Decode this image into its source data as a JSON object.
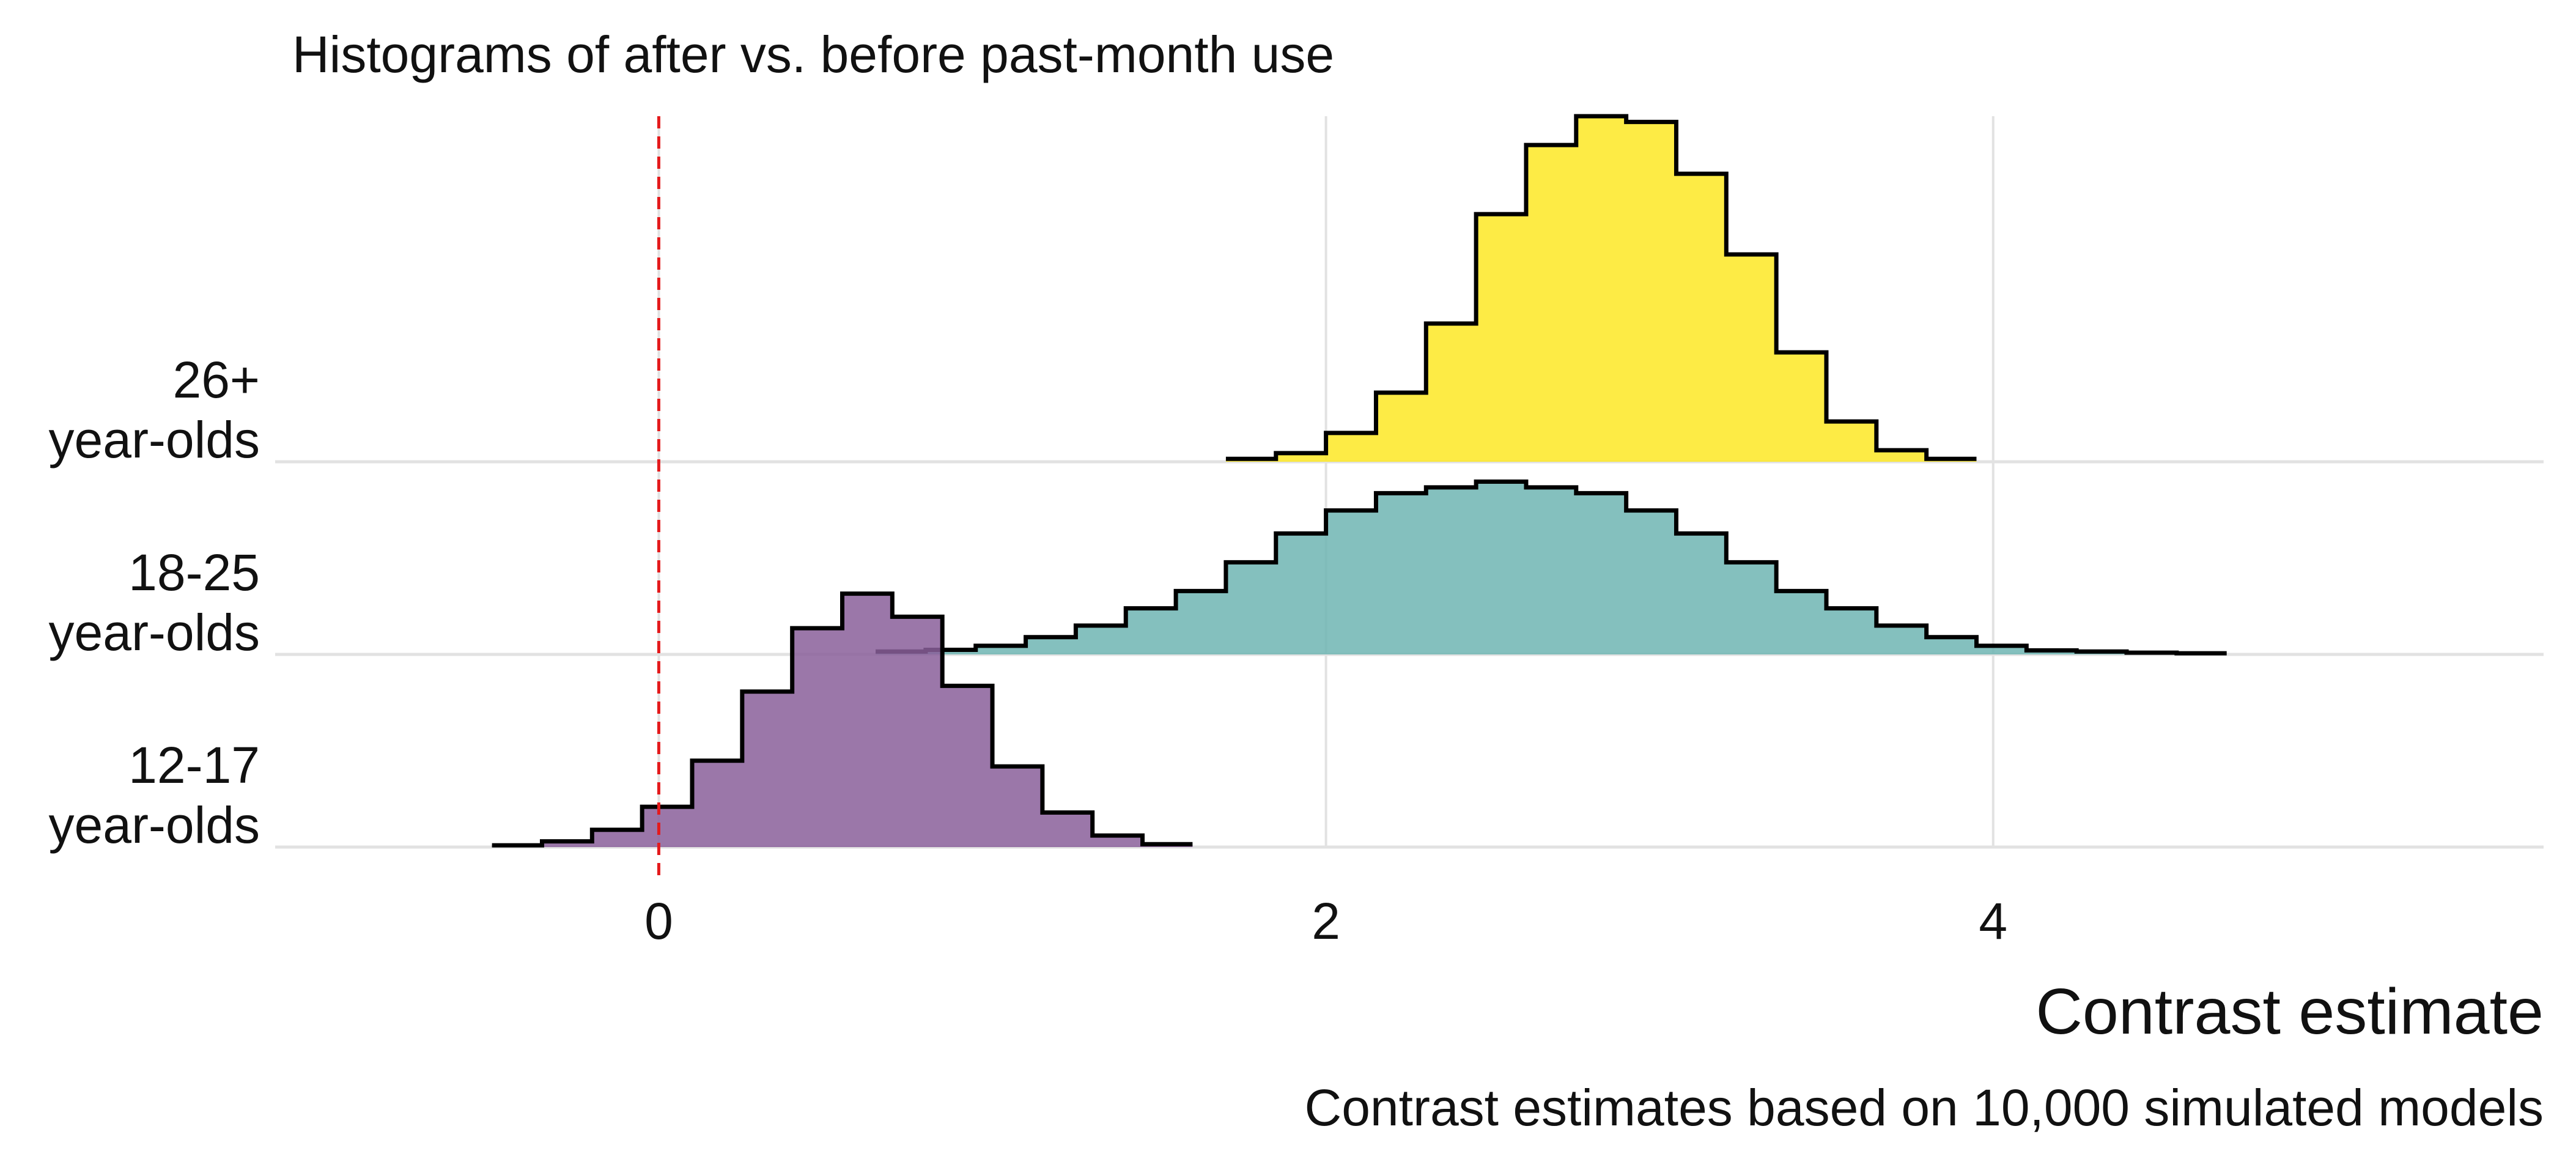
{
  "chart_data": {
    "type": "histogram",
    "title": "Histograms of after vs. before past-month use",
    "xlabel": "Contrast estimate",
    "caption": "Contrast estimates based on 10,000 simulated models",
    "xlim": [
      -1.15,
      5.65
    ],
    "x_ticks": [
      0,
      2,
      4
    ],
    "reference_line": {
      "x": 0,
      "style": "dashed",
      "color": "#e41a1c"
    },
    "grid": {
      "vertical": true,
      "horizontal_baselines": true
    },
    "bin_width": 0.15,
    "groups": [
      {
        "label_lines": [
          "12-17",
          "year-olds"
        ],
        "fill": "#8a5f9a",
        "bin_start": -0.5,
        "counts": [
          0.3,
          1,
          3,
          7,
          15,
          27,
          38,
          44,
          40,
          28,
          14,
          6,
          2,
          0.5
        ]
      },
      {
        "label_lines": [
          "18-25",
          "year-olds"
        ],
        "fill": "#6fb5b3",
        "bin_start": 0.65,
        "counts": [
          0.5,
          0.8,
          1.5,
          3,
          5,
          8,
          11,
          16,
          21,
          25,
          28,
          29,
          30,
          29,
          28,
          25,
          21,
          16,
          11,
          8,
          5,
          3,
          1.5,
          0.7,
          0.5,
          0.3,
          0.2
        ]
      },
      {
        "label_lines": [
          "26+",
          "year-olds"
        ],
        "fill": "#fde725",
        "bin_start": 1.7,
        "counts": [
          0.5,
          1.5,
          5,
          12,
          24,
          43,
          55,
          60,
          59,
          50,
          36,
          19,
          7,
          2,
          0.5
        ]
      }
    ],
    "overlap_fill": "#82bb88"
  }
}
